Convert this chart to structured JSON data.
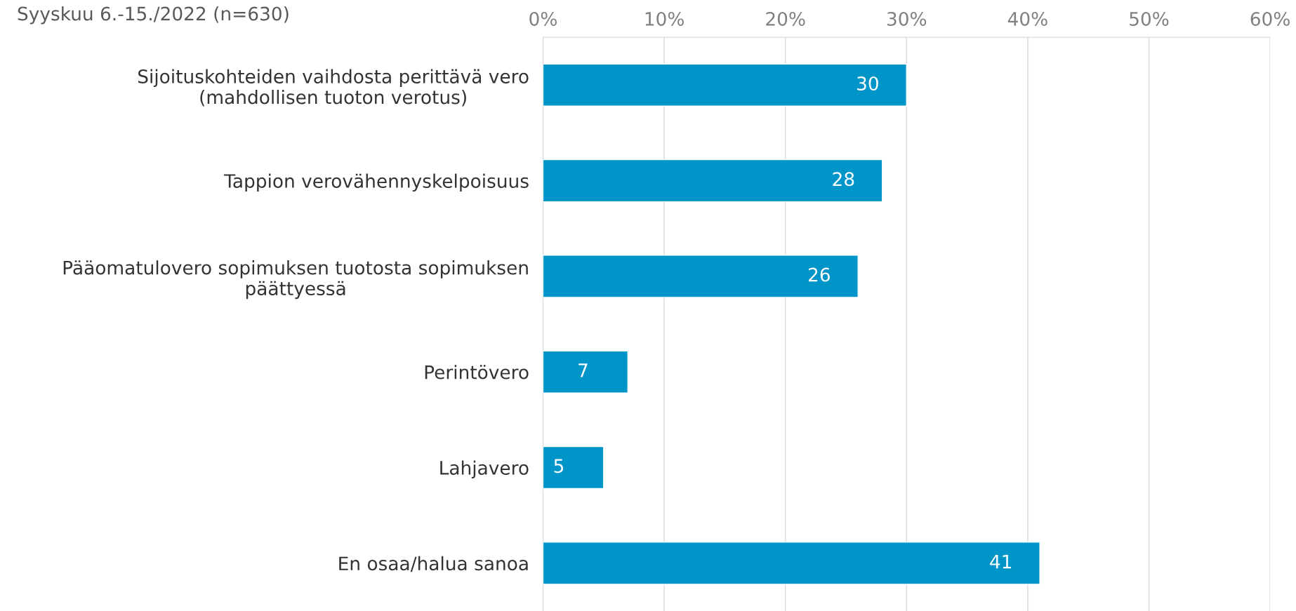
{
  "chart_data": {
    "type": "bar",
    "orientation": "horizontal",
    "title": "Syyskuu 6.-15./2022 (n=630)",
    "categories": [
      "Sijoituskohteiden vaihdosta perittävä vero\n(mahdollisen tuoton verotus)",
      "Tappion verovähennyskelpoisuus",
      "Pääomatulovero sopimuksen tuotosta sopimuksen\npäättyessä",
      "Perintövero",
      "Lahjavero",
      "En osaa/halua sanoa"
    ],
    "values": [
      30,
      28,
      26,
      7,
      5,
      41
    ],
    "color": "#0095c9",
    "data_labels": true,
    "xlim": [
      0,
      60
    ],
    "xticks": [
      {
        "value": 0,
        "label": "0%"
      },
      {
        "value": 10,
        "label": "10%"
      },
      {
        "value": 20,
        "label": "20%"
      },
      {
        "value": 30,
        "label": "30%"
      },
      {
        "value": 40,
        "label": "40%"
      },
      {
        "value": 50,
        "label": "50%"
      },
      {
        "value": 60,
        "label": "60%"
      }
    ],
    "grid": "x",
    "legend": false
  }
}
